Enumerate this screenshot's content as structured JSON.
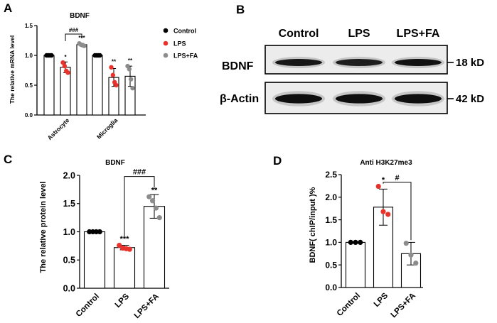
{
  "panels": {
    "a": {
      "letter": "A"
    },
    "b": {
      "letter": "B"
    },
    "c": {
      "letter": "C"
    },
    "d": {
      "letter": "D"
    }
  },
  "colors": {
    "control": "#000000",
    "lps": "#e8322c",
    "lps_fa": "#8c8c8c"
  },
  "chart_data": [
    {
      "id": "A",
      "type": "bar",
      "title": "BDNF",
      "ylabel": "The relative mRNA level",
      "categories": [
        "Astrocyte",
        "Microglia"
      ],
      "ylim": [
        0,
        1.5
      ],
      "yticks": [
        "0.0",
        "0.5",
        "1.0",
        "1.5"
      ],
      "legend": {
        "position": "right",
        "entries": [
          "Control",
          "LPS",
          "LPS+FA"
        ]
      },
      "series": [
        {
          "name": "Control",
          "color": "#000000",
          "values": [
            1.0,
            1.0
          ],
          "sd": [
            0.01,
            0.01
          ],
          "points": [
            [
              1.0,
              1.0,
              1.0,
              1.0
            ],
            [
              1.0,
              1.0,
              1.0,
              1.0
            ]
          ],
          "sig": [
            "",
            ""
          ]
        },
        {
          "name": "LPS",
          "color": "#e8322c",
          "values": [
            0.8,
            0.63
          ],
          "sd": [
            0.09,
            0.15
          ],
          "points": [
            [
              0.88,
              0.82,
              0.74,
              0.71
            ],
            [
              0.8,
              0.67,
              0.55,
              0.5
            ]
          ],
          "sig": [
            "*",
            "**"
          ]
        },
        {
          "name": "LPS+FA",
          "color": "#8c8c8c",
          "values": [
            1.18,
            0.65
          ],
          "sd": [
            0.02,
            0.17
          ],
          "points": [
            [
              1.2,
              1.18,
              1.17,
              1.16
            ],
            [
              0.82,
              0.77,
              0.6,
              0.45
            ]
          ],
          "sig": [
            "***",
            "**"
          ]
        }
      ],
      "comparison": {
        "group": 0,
        "from": 1,
        "to": 2,
        "label": "###"
      }
    },
    {
      "id": "C",
      "type": "bar",
      "title": "BDNF",
      "ylabel": "The relative protein level",
      "categories": [
        "Control",
        "LPS",
        "LPS+FA"
      ],
      "ylim": [
        0,
        2.0
      ],
      "yticks": [
        "0.0",
        "0.5",
        "1.0",
        "1.5",
        "2.0"
      ],
      "values": [
        1.0,
        0.72,
        1.45
      ],
      "sd": [
        0.01,
        0.04,
        0.21
      ],
      "points": [
        [
          1.0,
          1.0,
          1.0,
          1.0
        ],
        [
          0.76,
          0.71,
          0.7,
          0.69
        ],
        [
          1.62,
          1.55,
          1.42,
          1.25
        ]
      ],
      "sig": [
        "",
        "***",
        "**"
      ],
      "comparison": {
        "from": 1,
        "to": 2,
        "label": "###",
        "y": 1.98
      }
    },
    {
      "id": "D",
      "type": "bar",
      "title": "Anti H3K27me3",
      "ylabel": "BDNF( chIP/input )%",
      "categories": [
        "Control",
        "LPS",
        "LPS+FA"
      ],
      "ylim": [
        0,
        2.5
      ],
      "yticks": [
        "0.0",
        "0.5",
        "1.0",
        "1.5",
        "2.0",
        "2.5"
      ],
      "values": [
        1.0,
        1.78,
        0.75
      ],
      "sd": [
        0.01,
        0.4,
        0.25
      ],
      "points": [
        [
          1.0,
          1.0,
          1.0
        ],
        [
          2.24,
          1.68,
          1.62
        ],
        [
          0.98,
          0.72,
          0.54
        ]
      ],
      "sig": [
        "",
        "*",
        ""
      ],
      "comparison": {
        "from": 1,
        "to": 2,
        "label": "#",
        "y": 2.33
      }
    }
  ],
  "blot": {
    "columns": [
      "Control",
      "LPS",
      "LPS+FA"
    ],
    "rows": [
      {
        "label": "BDNF",
        "size": "18 kD",
        "intensity": [
          0.85,
          0.72,
          0.95
        ]
      },
      {
        "label": "β-Actin",
        "size": "42 kD",
        "intensity": [
          1.0,
          1.0,
          1.0
        ]
      }
    ]
  }
}
